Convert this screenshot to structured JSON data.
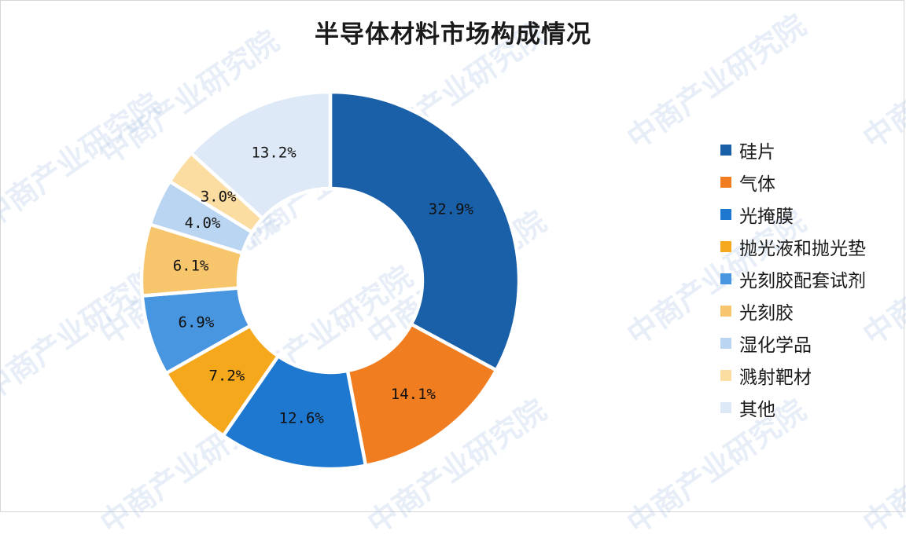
{
  "title": "半导体材料市场构成情况",
  "watermark_text": "中商产业研究院",
  "chart_data": {
    "type": "pie",
    "title": "半导体材料市场构成情况",
    "donut": true,
    "legend_position": "right",
    "unit": "%",
    "slices": [
      {
        "label": "硅片",
        "value": 32.9,
        "display": "32.9%",
        "color": "#1a60a9"
      },
      {
        "label": "气体",
        "value": 14.1,
        "display": "14.1%",
        "color": "#f07d20"
      },
      {
        "label": "光掩膜",
        "value": 12.6,
        "display": "12.6%",
        "color": "#1f78d0"
      },
      {
        "label": "抛光液和抛光垫",
        "value": 7.2,
        "display": "7.2%",
        "color": "#f5a81c"
      },
      {
        "label": "光刻胶配套试剂",
        "value": 6.9,
        "display": "6.9%",
        "color": "#4996e0"
      },
      {
        "label": "光刻胶",
        "value": 6.1,
        "display": "6.1%",
        "color": "#f7c66c"
      },
      {
        "label": "湿化学品",
        "value": 4.0,
        "display": "4.0%",
        "color": "#b9d5f1"
      },
      {
        "label": "溅射靶材",
        "value": 3.0,
        "display": "3.0%",
        "color": "#fbdda2"
      },
      {
        "label": "其他",
        "value": 13.2,
        "display": "13.2%",
        "color": "#dde9f7"
      }
    ]
  }
}
